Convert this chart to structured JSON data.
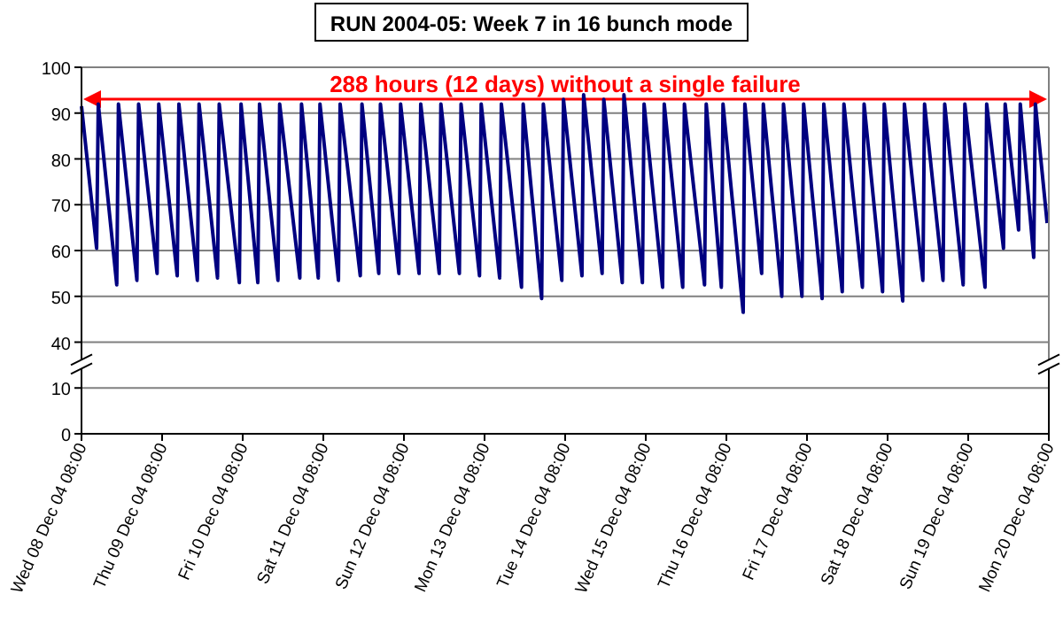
{
  "chart_data": [
    {
      "type": "line",
      "title": "RUN 2004-05: Week 7 in 16 bunch mode",
      "annotations": [
        "288 hours (12 days) without a single failure"
      ],
      "xlim": [
        "2004-12-08T08:00",
        "2004-12-20T08:00"
      ],
      "ylim": [
        35,
        100
      ],
      "yticks": [
        40,
        50,
        60,
        70,
        80,
        90,
        100
      ],
      "grid": "y",
      "line_style": "solid",
      "marker": "none",
      "tick_labels": "y",
      "series": [
        {
          "color": "#000080",
          "x": [
            "2004-12-08T08:00",
            "2004-12-08T12:30",
            "2004-12-08T13:00",
            "2004-12-08T18:30",
            "2004-12-08T19:00",
            "2004-12-09T00:30",
            "2004-12-09T01:00",
            "2004-12-09T06:30",
            "2004-12-09T07:00",
            "2004-12-09T12:30",
            "2004-12-09T13:00",
            "2004-12-09T18:30",
            "2004-12-09T19:00",
            "2004-12-10T00:30",
            "2004-12-10T01:00",
            "2004-12-10T07:00",
            "2004-12-10T07:30",
            "2004-12-10T12:30",
            "2004-12-10T13:00",
            "2004-12-10T18:30",
            "2004-12-10T19:00",
            "2004-12-11T01:00",
            "2004-12-11T01:30",
            "2004-12-11T06:30",
            "2004-12-11T07:00",
            "2004-12-11T12:30",
            "2004-12-11T13:00",
            "2004-12-11T19:00",
            "2004-12-11T19:30",
            "2004-12-12T00:30",
            "2004-12-12T01:00",
            "2004-12-12T06:30",
            "2004-12-12T07:00",
            "2004-12-12T12:30",
            "2004-12-12T13:00",
            "2004-12-12T18:30",
            "2004-12-12T19:00",
            "2004-12-13T00:30",
            "2004-12-13T01:00",
            "2004-12-13T06:30",
            "2004-12-13T07:00",
            "2004-12-13T12:30",
            "2004-12-13T13:00",
            "2004-12-13T19:00",
            "2004-12-13T19:30",
            "2004-12-14T01:00",
            "2004-12-14T01:30",
            "2004-12-14T07:00",
            "2004-12-14T07:30",
            "2004-12-14T13:00",
            "2004-12-14T13:30",
            "2004-12-14T19:00",
            "2004-12-14T19:30",
            "2004-12-15T01:00",
            "2004-12-15T01:30",
            "2004-12-15T07:00",
            "2004-12-15T07:30",
            "2004-12-15T13:00",
            "2004-12-15T13:30",
            "2004-12-15T19:00",
            "2004-12-15T19:30",
            "2004-12-16T01:30",
            "2004-12-16T02:00",
            "2004-12-16T06:30",
            "2004-12-16T07:00",
            "2004-12-16T13:00",
            "2004-12-16T13:30",
            "2004-12-16T18:30",
            "2004-12-16T19:00",
            "2004-12-17T00:30",
            "2004-12-17T01:00",
            "2004-12-17T06:30",
            "2004-12-17T07:00",
            "2004-12-17T12:30",
            "2004-12-17T13:00",
            "2004-12-17T18:30",
            "2004-12-17T19:00",
            "2004-12-18T00:30",
            "2004-12-18T01:00",
            "2004-12-18T06:30",
            "2004-12-18T07:00",
            "2004-12-18T12:30",
            "2004-12-18T13:00",
            "2004-12-18T18:30",
            "2004-12-18T19:00",
            "2004-12-19T00:30",
            "2004-12-19T01:00",
            "2004-12-19T06:30",
            "2004-12-19T07:00",
            "2004-12-19T13:00",
            "2004-12-19T13:30",
            "2004-12-19T18:30",
            "2004-12-19T19:00",
            "2004-12-19T23:00",
            "2004-12-19T23:30",
            "2004-12-20T03:30",
            "2004-12-20T04:00",
            "2004-12-20T07:30"
          ],
          "values": [
            91.5,
            60.5,
            92,
            52.5,
            92,
            53.5,
            92,
            55,
            92,
            54.5,
            92,
            53.5,
            92,
            54,
            92,
            53,
            92,
            53,
            92,
            53.5,
            92,
            54,
            92,
            54,
            92,
            53.5,
            92,
            54.5,
            92,
            55,
            92,
            55,
            92,
            55,
            92,
            55,
            92,
            55,
            92,
            54.5,
            92,
            54,
            92,
            52,
            92,
            49.5,
            92,
            53.5,
            93,
            54.5,
            94,
            55,
            93,
            53,
            94,
            53,
            92,
            52,
            92,
            52,
            92,
            52.5,
            92,
            52,
            92,
            46.5,
            92,
            55,
            92,
            50,
            92,
            50,
            92,
            49.5,
            92,
            51,
            92,
            52,
            92,
            51,
            92,
            49,
            92,
            53.5,
            92,
            53.5,
            92,
            52.5,
            92,
            52,
            92,
            60.5,
            92,
            64.5,
            92,
            58.5,
            92,
            66
          ]
        }
      ]
    },
    {
      "type": "line",
      "xlim": [
        "2004-12-08T08:00",
        "2004-12-20T08:00"
      ],
      "xticks": [
        {
          "value": "2004-12-08T08:00",
          "label": "Wed 08 Dec 04 08:00"
        },
        {
          "value": "2004-12-09T08:00",
          "label": "Thu 09 Dec 04 08:00"
        },
        {
          "value": "2004-12-10T08:00",
          "label": "Fri 10 Dec 04 08:00"
        },
        {
          "value": "2004-12-11T08:00",
          "label": "Sat 11 Dec 04 08:00"
        },
        {
          "value": "2004-12-12T08:00",
          "label": "Sun 12 Dec 04 08:00"
        },
        {
          "value": "2004-12-13T08:00",
          "label": "Mon 13 Dec 04 08:00"
        },
        {
          "value": "2004-12-14T08:00",
          "label": "Tue 14 Dec 04 08:00"
        },
        {
          "value": "2004-12-15T08:00",
          "label": "Wed 15 Dec 04 08:00"
        },
        {
          "value": "2004-12-16T08:00",
          "label": "Thu 16 Dec 04 08:00"
        },
        {
          "value": "2004-12-17T08:00",
          "label": "Fri 17 Dec 04 08:00"
        },
        {
          "value": "2004-12-18T08:00",
          "label": "Sat 18 Dec 04 08:00"
        },
        {
          "value": "2004-12-19T08:00",
          "label": "Sun 19 Dec 04 08:00"
        },
        {
          "value": "2004-12-20T08:00",
          "label": "Mon 20 Dec 04 08:00"
        }
      ],
      "ylim": [
        0,
        15
      ],
      "yticks": [
        0,
        10
      ],
      "grid": "y"
    }
  ]
}
